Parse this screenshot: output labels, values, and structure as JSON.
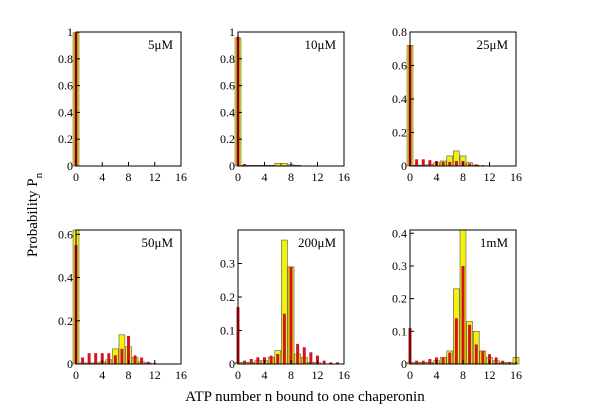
{
  "figure": {
    "xlabel": "ATP number n bound to one chaperonin",
    "ylabel_main": "Probability P",
    "ylabel_sub": "n"
  },
  "colors": {
    "series_a": "#f2f20a",
    "series_b": "#d2141e"
  },
  "chart_data": [
    {
      "type": "bar",
      "label": "5μM",
      "xlim": [
        0,
        16
      ],
      "ylim": [
        0,
        1
      ],
      "xticks": [
        "0",
        "4",
        "8",
        "12",
        "16"
      ],
      "yticks": [
        "0",
        "0.2",
        "0.4",
        "0.6",
        "0.8",
        "1"
      ],
      "grid": false,
      "x": [
        0,
        1,
        2,
        3,
        4,
        5,
        6,
        7,
        8,
        9,
        10,
        11,
        12,
        13,
        14,
        15,
        16
      ],
      "series": [
        {
          "values": [
            0.995,
            0,
            0,
            0,
            0,
            0,
            0,
            0,
            0,
            0,
            0,
            0,
            0,
            0,
            0,
            0,
            0
          ]
        },
        {
          "values": [
            0.995,
            0,
            0,
            0,
            0,
            0,
            0,
            0,
            0,
            0,
            0,
            0,
            0,
            0,
            0,
            0,
            0
          ]
        }
      ]
    },
    {
      "type": "bar",
      "label": "10μM",
      "xlim": [
        0,
        16
      ],
      "ylim": [
        0,
        1
      ],
      "xticks": [
        "0",
        "4",
        "8",
        "12",
        "16"
      ],
      "yticks": [
        "0",
        "0.2",
        "0.4",
        "0.6",
        "0.8",
        "1"
      ],
      "grid": false,
      "x": [
        0,
        1,
        2,
        3,
        4,
        5,
        6,
        7,
        8,
        9,
        10,
        11,
        12,
        13,
        14,
        15,
        16
      ],
      "series": [
        {
          "values": [
            0.955,
            0.005,
            0.005,
            0.005,
            0.005,
            0.005,
            0.02,
            0.02,
            0.01,
            0.005,
            0,
            0,
            0,
            0,
            0,
            0,
            0
          ]
        },
        {
          "values": [
            0.965,
            0.015,
            0.005,
            0.005,
            0.005,
            0.005,
            0.005,
            0.005,
            0.005,
            0,
            0,
            0,
            0,
            0,
            0,
            0,
            0
          ]
        }
      ]
    },
    {
      "type": "bar",
      "label": "25μM",
      "xlim": [
        0,
        16
      ],
      "ylim": [
        0,
        0.8
      ],
      "xticks": [
        "0",
        "4",
        "8",
        "12",
        "16"
      ],
      "yticks": [
        "0",
        "0.2",
        "0.4",
        "0.6",
        "0.8"
      ],
      "grid": false,
      "x": [
        0,
        1,
        2,
        3,
        4,
        5,
        6,
        7,
        8,
        9,
        10,
        11,
        12,
        13,
        14,
        15,
        16
      ],
      "series": [
        {
          "values": [
            0.72,
            0.005,
            0.005,
            0.01,
            0.02,
            0.03,
            0.06,
            0.09,
            0.06,
            0.02,
            0.005,
            0,
            0,
            0,
            0,
            0,
            0
          ]
        },
        {
          "values": [
            0.72,
            0.04,
            0.04,
            0.035,
            0.03,
            0.025,
            0.025,
            0.03,
            0.03,
            0.015,
            0.01,
            0.005,
            0,
            0,
            0,
            0,
            0
          ]
        }
      ]
    },
    {
      "type": "bar",
      "label": "50μM",
      "xlim": [
        0,
        16
      ],
      "ylim": [
        0,
        0.62
      ],
      "xticks": [
        "0",
        "4",
        "8",
        "12",
        "16"
      ],
      "yticks": [
        "0",
        "0.2",
        "0.4",
        "0.6"
      ],
      "grid": false,
      "x": [
        0,
        1,
        2,
        3,
        4,
        5,
        6,
        7,
        8,
        9,
        10,
        11,
        12,
        13,
        14,
        15,
        16
      ],
      "series": [
        {
          "values": [
            0.62,
            0.005,
            0.005,
            0.005,
            0.01,
            0.02,
            0.07,
            0.135,
            0.08,
            0.03,
            0.01,
            0.005,
            0,
            0,
            0,
            0,
            0
          ]
        },
        {
          "values": [
            0.55,
            0.03,
            0.05,
            0.05,
            0.05,
            0.05,
            0.04,
            0.07,
            0.13,
            0.04,
            0.03,
            0.01,
            0.005,
            0,
            0,
            0,
            0
          ]
        }
      ]
    },
    {
      "type": "bar",
      "label": "200μM",
      "xlim": [
        0,
        16
      ],
      "ylim": [
        0,
        0.4
      ],
      "xticks": [
        "0",
        "4",
        "8",
        "12",
        "16"
      ],
      "yticks": [
        "0",
        "0.1",
        "0.2",
        "0.3"
      ],
      "grid": false,
      "x": [
        0,
        1,
        2,
        3,
        4,
        5,
        6,
        7,
        8,
        9,
        10,
        11,
        12,
        13,
        14,
        15,
        16
      ],
      "series": [
        {
          "values": [
            0.005,
            0.005,
            0.005,
            0.01,
            0.01,
            0.02,
            0.04,
            0.37,
            0.29,
            0.03,
            0.02,
            0.005,
            0.005,
            0,
            0,
            0,
            0
          ]
        },
        {
          "values": [
            0.17,
            0.01,
            0.015,
            0.02,
            0.02,
            0.025,
            0.03,
            0.15,
            0.29,
            0.06,
            0.05,
            0.035,
            0.025,
            0.01,
            0.005,
            0.005,
            0
          ]
        }
      ]
    },
    {
      "type": "bar",
      "label": "1mM",
      "xlim": [
        0,
        16
      ],
      "ylim": [
        0,
        0.41
      ],
      "xticks": [
        "0",
        "4",
        "8",
        "12",
        "16"
      ],
      "yticks": [
        "0",
        "0.1",
        "0.2",
        "0.3",
        "0.4"
      ],
      "grid": false,
      "x": [
        0,
        1,
        2,
        3,
        4,
        5,
        6,
        7,
        8,
        9,
        10,
        11,
        12,
        13,
        14,
        15,
        16
      ],
      "series": [
        {
          "values": [
            0.005,
            0.005,
            0.005,
            0.005,
            0.01,
            0.02,
            0.04,
            0.23,
            0.41,
            0.13,
            0.1,
            0.04,
            0.02,
            0.01,
            0.005,
            0.005,
            0.02
          ]
        },
        {
          "values": [
            0.11,
            0.01,
            0.01,
            0.015,
            0.02,
            0.02,
            0.035,
            0.14,
            0.3,
            0.12,
            0.06,
            0.04,
            0.03,
            0.02,
            0.01,
            0.005,
            0.005
          ]
        }
      ]
    }
  ]
}
